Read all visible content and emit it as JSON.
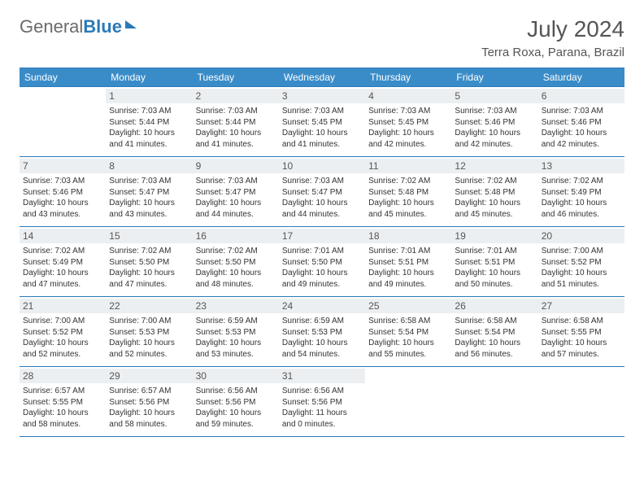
{
  "brand": {
    "part1": "General",
    "part2": "Blue"
  },
  "title": "July 2024",
  "location": "Terra Roxa, Parana, Brazil",
  "colors": {
    "header_bg": "#3a8cc9",
    "border": "#2a7ab8",
    "daynum_bg": "#eceff1",
    "text": "#333333",
    "muted": "#555555",
    "white": "#ffffff"
  },
  "weekdays": [
    "Sunday",
    "Monday",
    "Tuesday",
    "Wednesday",
    "Thursday",
    "Friday",
    "Saturday"
  ],
  "firstWeekday": 1,
  "daysInMonth": 31,
  "days": {
    "1": {
      "sunrise": "7:03 AM",
      "sunset": "5:44 PM",
      "daylight": "10 hours and 41 minutes."
    },
    "2": {
      "sunrise": "7:03 AM",
      "sunset": "5:44 PM",
      "daylight": "10 hours and 41 minutes."
    },
    "3": {
      "sunrise": "7:03 AM",
      "sunset": "5:45 PM",
      "daylight": "10 hours and 41 minutes."
    },
    "4": {
      "sunrise": "7:03 AM",
      "sunset": "5:45 PM",
      "daylight": "10 hours and 42 minutes."
    },
    "5": {
      "sunrise": "7:03 AM",
      "sunset": "5:46 PM",
      "daylight": "10 hours and 42 minutes."
    },
    "6": {
      "sunrise": "7:03 AM",
      "sunset": "5:46 PM",
      "daylight": "10 hours and 42 minutes."
    },
    "7": {
      "sunrise": "7:03 AM",
      "sunset": "5:46 PM",
      "daylight": "10 hours and 43 minutes."
    },
    "8": {
      "sunrise": "7:03 AM",
      "sunset": "5:47 PM",
      "daylight": "10 hours and 43 minutes."
    },
    "9": {
      "sunrise": "7:03 AM",
      "sunset": "5:47 PM",
      "daylight": "10 hours and 44 minutes."
    },
    "10": {
      "sunrise": "7:03 AM",
      "sunset": "5:47 PM",
      "daylight": "10 hours and 44 minutes."
    },
    "11": {
      "sunrise": "7:02 AM",
      "sunset": "5:48 PM",
      "daylight": "10 hours and 45 minutes."
    },
    "12": {
      "sunrise": "7:02 AM",
      "sunset": "5:48 PM",
      "daylight": "10 hours and 45 minutes."
    },
    "13": {
      "sunrise": "7:02 AM",
      "sunset": "5:49 PM",
      "daylight": "10 hours and 46 minutes."
    },
    "14": {
      "sunrise": "7:02 AM",
      "sunset": "5:49 PM",
      "daylight": "10 hours and 47 minutes."
    },
    "15": {
      "sunrise": "7:02 AM",
      "sunset": "5:50 PM",
      "daylight": "10 hours and 47 minutes."
    },
    "16": {
      "sunrise": "7:02 AM",
      "sunset": "5:50 PM",
      "daylight": "10 hours and 48 minutes."
    },
    "17": {
      "sunrise": "7:01 AM",
      "sunset": "5:50 PM",
      "daylight": "10 hours and 49 minutes."
    },
    "18": {
      "sunrise": "7:01 AM",
      "sunset": "5:51 PM",
      "daylight": "10 hours and 49 minutes."
    },
    "19": {
      "sunrise": "7:01 AM",
      "sunset": "5:51 PM",
      "daylight": "10 hours and 50 minutes."
    },
    "20": {
      "sunrise": "7:00 AM",
      "sunset": "5:52 PM",
      "daylight": "10 hours and 51 minutes."
    },
    "21": {
      "sunrise": "7:00 AM",
      "sunset": "5:52 PM",
      "daylight": "10 hours and 52 minutes."
    },
    "22": {
      "sunrise": "7:00 AM",
      "sunset": "5:53 PM",
      "daylight": "10 hours and 52 minutes."
    },
    "23": {
      "sunrise": "6:59 AM",
      "sunset": "5:53 PM",
      "daylight": "10 hours and 53 minutes."
    },
    "24": {
      "sunrise": "6:59 AM",
      "sunset": "5:53 PM",
      "daylight": "10 hours and 54 minutes."
    },
    "25": {
      "sunrise": "6:58 AM",
      "sunset": "5:54 PM",
      "daylight": "10 hours and 55 minutes."
    },
    "26": {
      "sunrise": "6:58 AM",
      "sunset": "5:54 PM",
      "daylight": "10 hours and 56 minutes."
    },
    "27": {
      "sunrise": "6:58 AM",
      "sunset": "5:55 PM",
      "daylight": "10 hours and 57 minutes."
    },
    "28": {
      "sunrise": "6:57 AM",
      "sunset": "5:55 PM",
      "daylight": "10 hours and 58 minutes."
    },
    "29": {
      "sunrise": "6:57 AM",
      "sunset": "5:56 PM",
      "daylight": "10 hours and 58 minutes."
    },
    "30": {
      "sunrise": "6:56 AM",
      "sunset": "5:56 PM",
      "daylight": "10 hours and 59 minutes."
    },
    "31": {
      "sunrise": "6:56 AM",
      "sunset": "5:56 PM",
      "daylight": "11 hours and 0 minutes."
    }
  },
  "labels": {
    "sunrise": "Sunrise: ",
    "sunset": "Sunset: ",
    "daylight": "Daylight: "
  }
}
